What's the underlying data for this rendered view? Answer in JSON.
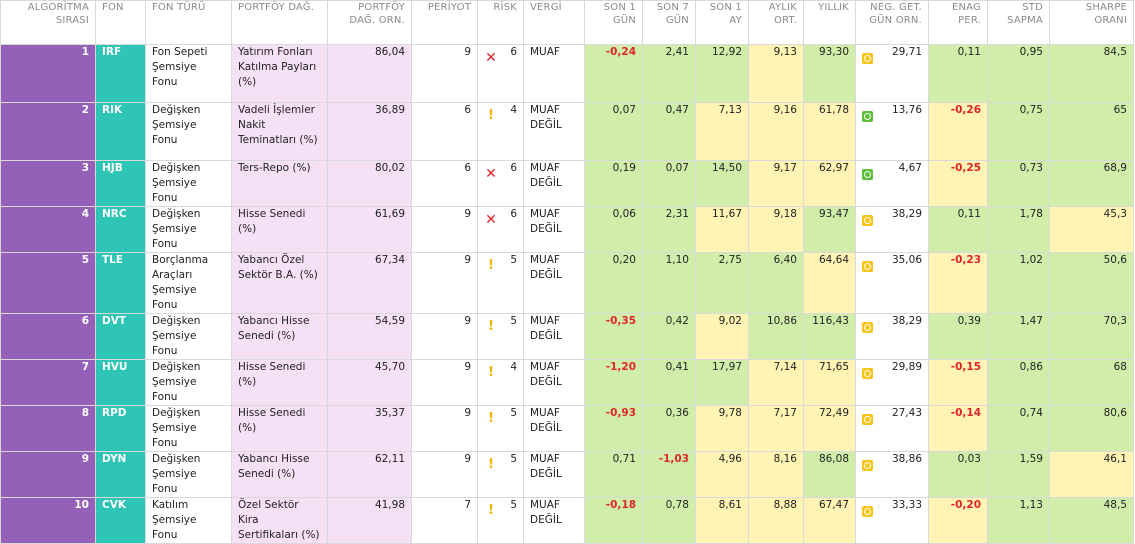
{
  "columns": [
    "ALGORİTMA SIRASI",
    "FON",
    "FON TÜRÜ",
    "PORTFÖY DAĞ.",
    "PORTFÖY DAĞ. ORN.",
    "PERİYOT",
    "RİSK",
    "VERGİ",
    "SON 1 GÜN",
    "SON 7 GÜN",
    "SON 1 AY",
    "AYLIK ORT.",
    "YILLIK",
    "NEG. GET. GÜN ORN.",
    "ENAG PER.",
    "STD SAPMA",
    "SHARPE ORANI"
  ],
  "colors": {
    "algo_bg": "#9460b8",
    "code_bg": "#2ec4b6",
    "portfoy_bg": "#f5e0f5",
    "good": "#d0eeaa",
    "mid": "#fff4b3",
    "negative_text": "#e0242d"
  },
  "rows": [
    {
      "rank": "1",
      "code": "IRF",
      "type": "Fon Sepeti Şemsiye Fonu",
      "portfoy": "Yatırım Fonları Katılma Payları (%)",
      "orn": "86,04",
      "periyot": "9",
      "risk_icon": "cross-icon",
      "risk": "6",
      "vergi": "MUAF",
      "son1gun": "-0,24",
      "son7gun": "2,41",
      "son1ay": "12,92",
      "aylik": "9,13",
      "yillik": "93,30",
      "neg_icon": "yellow-status-icon",
      "neg": "29,71",
      "enag": "0,11",
      "std": "0,95",
      "sharpe": "84,5"
    },
    {
      "rank": "2",
      "code": "RIK",
      "type": "Değişken Şemsiye Fonu",
      "portfoy": "Vadeli İşlemler Nakit Teminatları (%)",
      "orn": "36,89",
      "periyot": "6",
      "risk_icon": "warning-icon",
      "risk": "4",
      "vergi": "MUAF DEĞİL",
      "son1gun": "0,07",
      "son7gun": "0,47",
      "son1ay": "7,13",
      "aylik": "9,16",
      "yillik": "61,78",
      "neg_icon": "green-status-icon",
      "neg": "13,76",
      "enag": "-0,26",
      "std": "0,75",
      "sharpe": "65"
    },
    {
      "rank": "3",
      "code": "HJB",
      "type": "Değişken Şemsiye Fonu",
      "portfoy": "Ters-Repo (%)",
      "orn": "80,02",
      "periyot": "6",
      "risk_icon": "cross-icon",
      "risk": "6",
      "vergi": "MUAF DEĞİL",
      "son1gun": "0,19",
      "son7gun": "0,07",
      "son1ay": "14,50",
      "aylik": "9,17",
      "yillik": "62,97",
      "neg_icon": "green-status-icon",
      "neg": "4,67",
      "enag": "-0,25",
      "std": "0,73",
      "sharpe": "68,9"
    },
    {
      "rank": "4",
      "code": "NRC",
      "type": "Değişken Şemsiye Fonu",
      "portfoy": "Hisse Senedi (%)",
      "orn": "61,69",
      "periyot": "9",
      "risk_icon": "cross-icon",
      "risk": "6",
      "vergi": "MUAF DEĞİL",
      "son1gun": "0,06",
      "son7gun": "2,31",
      "son1ay": "11,67",
      "aylik": "9,18",
      "yillik": "93,47",
      "neg_icon": "yellow-status-icon",
      "neg": "38,29",
      "enag": "0,11",
      "std": "1,78",
      "sharpe": "45,3"
    },
    {
      "rank": "5",
      "code": "TLE",
      "type": "Borçlanma Araçları Şemsiye Fonu",
      "portfoy": "Yabancı Özel Sektör B.A. (%)",
      "orn": "67,34",
      "periyot": "9",
      "risk_icon": "warning-icon",
      "risk": "5",
      "vergi": "MUAF DEĞİL",
      "son1gun": "0,20",
      "son7gun": "1,10",
      "son1ay": "2,75",
      "aylik": "6,40",
      "yillik": "64,64",
      "neg_icon": "yellow-status-icon",
      "neg": "35,06",
      "enag": "-0,23",
      "std": "1,02",
      "sharpe": "50,6"
    },
    {
      "rank": "6",
      "code": "DVT",
      "type": "Değişken Şemsiye Fonu",
      "portfoy": "Yabancı Hisse Senedi (%)",
      "orn": "54,59",
      "periyot": "9",
      "risk_icon": "warning-icon",
      "risk": "5",
      "vergi": "MUAF DEĞİL",
      "son1gun": "-0,35",
      "son7gun": "0,42",
      "son1ay": "9,02",
      "aylik": "10,86",
      "yillik": "116,43",
      "neg_icon": "yellow-status-icon",
      "neg": "38,29",
      "enag": "0,39",
      "std": "1,47",
      "sharpe": "70,3"
    },
    {
      "rank": "7",
      "code": "HVU",
      "type": "Değişken Şemsiye Fonu",
      "portfoy": "Hisse Senedi (%)",
      "orn": "45,70",
      "periyot": "9",
      "risk_icon": "warning-icon",
      "risk": "4",
      "vergi": "MUAF DEĞİL",
      "son1gun": "-1,20",
      "son7gun": "0,41",
      "son1ay": "17,97",
      "aylik": "7,14",
      "yillik": "71,65",
      "neg_icon": "yellow-status-icon",
      "neg": "29,89",
      "enag": "-0,15",
      "std": "0,86",
      "sharpe": "68"
    },
    {
      "rank": "8",
      "code": "RPD",
      "type": "Değişken Şemsiye Fonu",
      "portfoy": "Hisse Senedi (%)",
      "orn": "35,37",
      "periyot": "9",
      "risk_icon": "warning-icon",
      "risk": "5",
      "vergi": "MUAF DEĞİL",
      "son1gun": "-0,93",
      "son7gun": "0,36",
      "son1ay": "9,78",
      "aylik": "7,17",
      "yillik": "72,49",
      "neg_icon": "yellow-status-icon",
      "neg": "27,43",
      "enag": "-0,14",
      "std": "0,74",
      "sharpe": "80,6"
    },
    {
      "rank": "9",
      "code": "DYN",
      "type": "Değişken Şemsiye Fonu",
      "portfoy": "Yabancı Hisse Senedi (%)",
      "orn": "62,11",
      "periyot": "9",
      "risk_icon": "warning-icon",
      "risk": "5",
      "vergi": "MUAF DEĞİL",
      "son1gun": "0,71",
      "son7gun": "-1,03",
      "son1ay": "4,96",
      "aylik": "8,16",
      "yillik": "86,08",
      "neg_icon": "yellow-status-icon",
      "neg": "38,86",
      "enag": "0,03",
      "std": "1,59",
      "sharpe": "46,1"
    },
    {
      "rank": "10",
      "code": "CVK",
      "type": "Katılım Şemsiye Fonu",
      "portfoy": "Özel Sektör Kira Sertifikaları (%)",
      "orn": "41,98",
      "periyot": "7",
      "risk_icon": "warning-icon",
      "risk": "5",
      "vergi": "MUAF DEĞİL",
      "son1gun": "-0,18",
      "son7gun": "0,78",
      "son1ay": "8,61",
      "aylik": "8,88",
      "yillik": "67,47",
      "neg_icon": "yellow-status-icon",
      "neg": "33,33",
      "enag": "-0,20",
      "std": "1,13",
      "sharpe": "48,5"
    }
  ]
}
